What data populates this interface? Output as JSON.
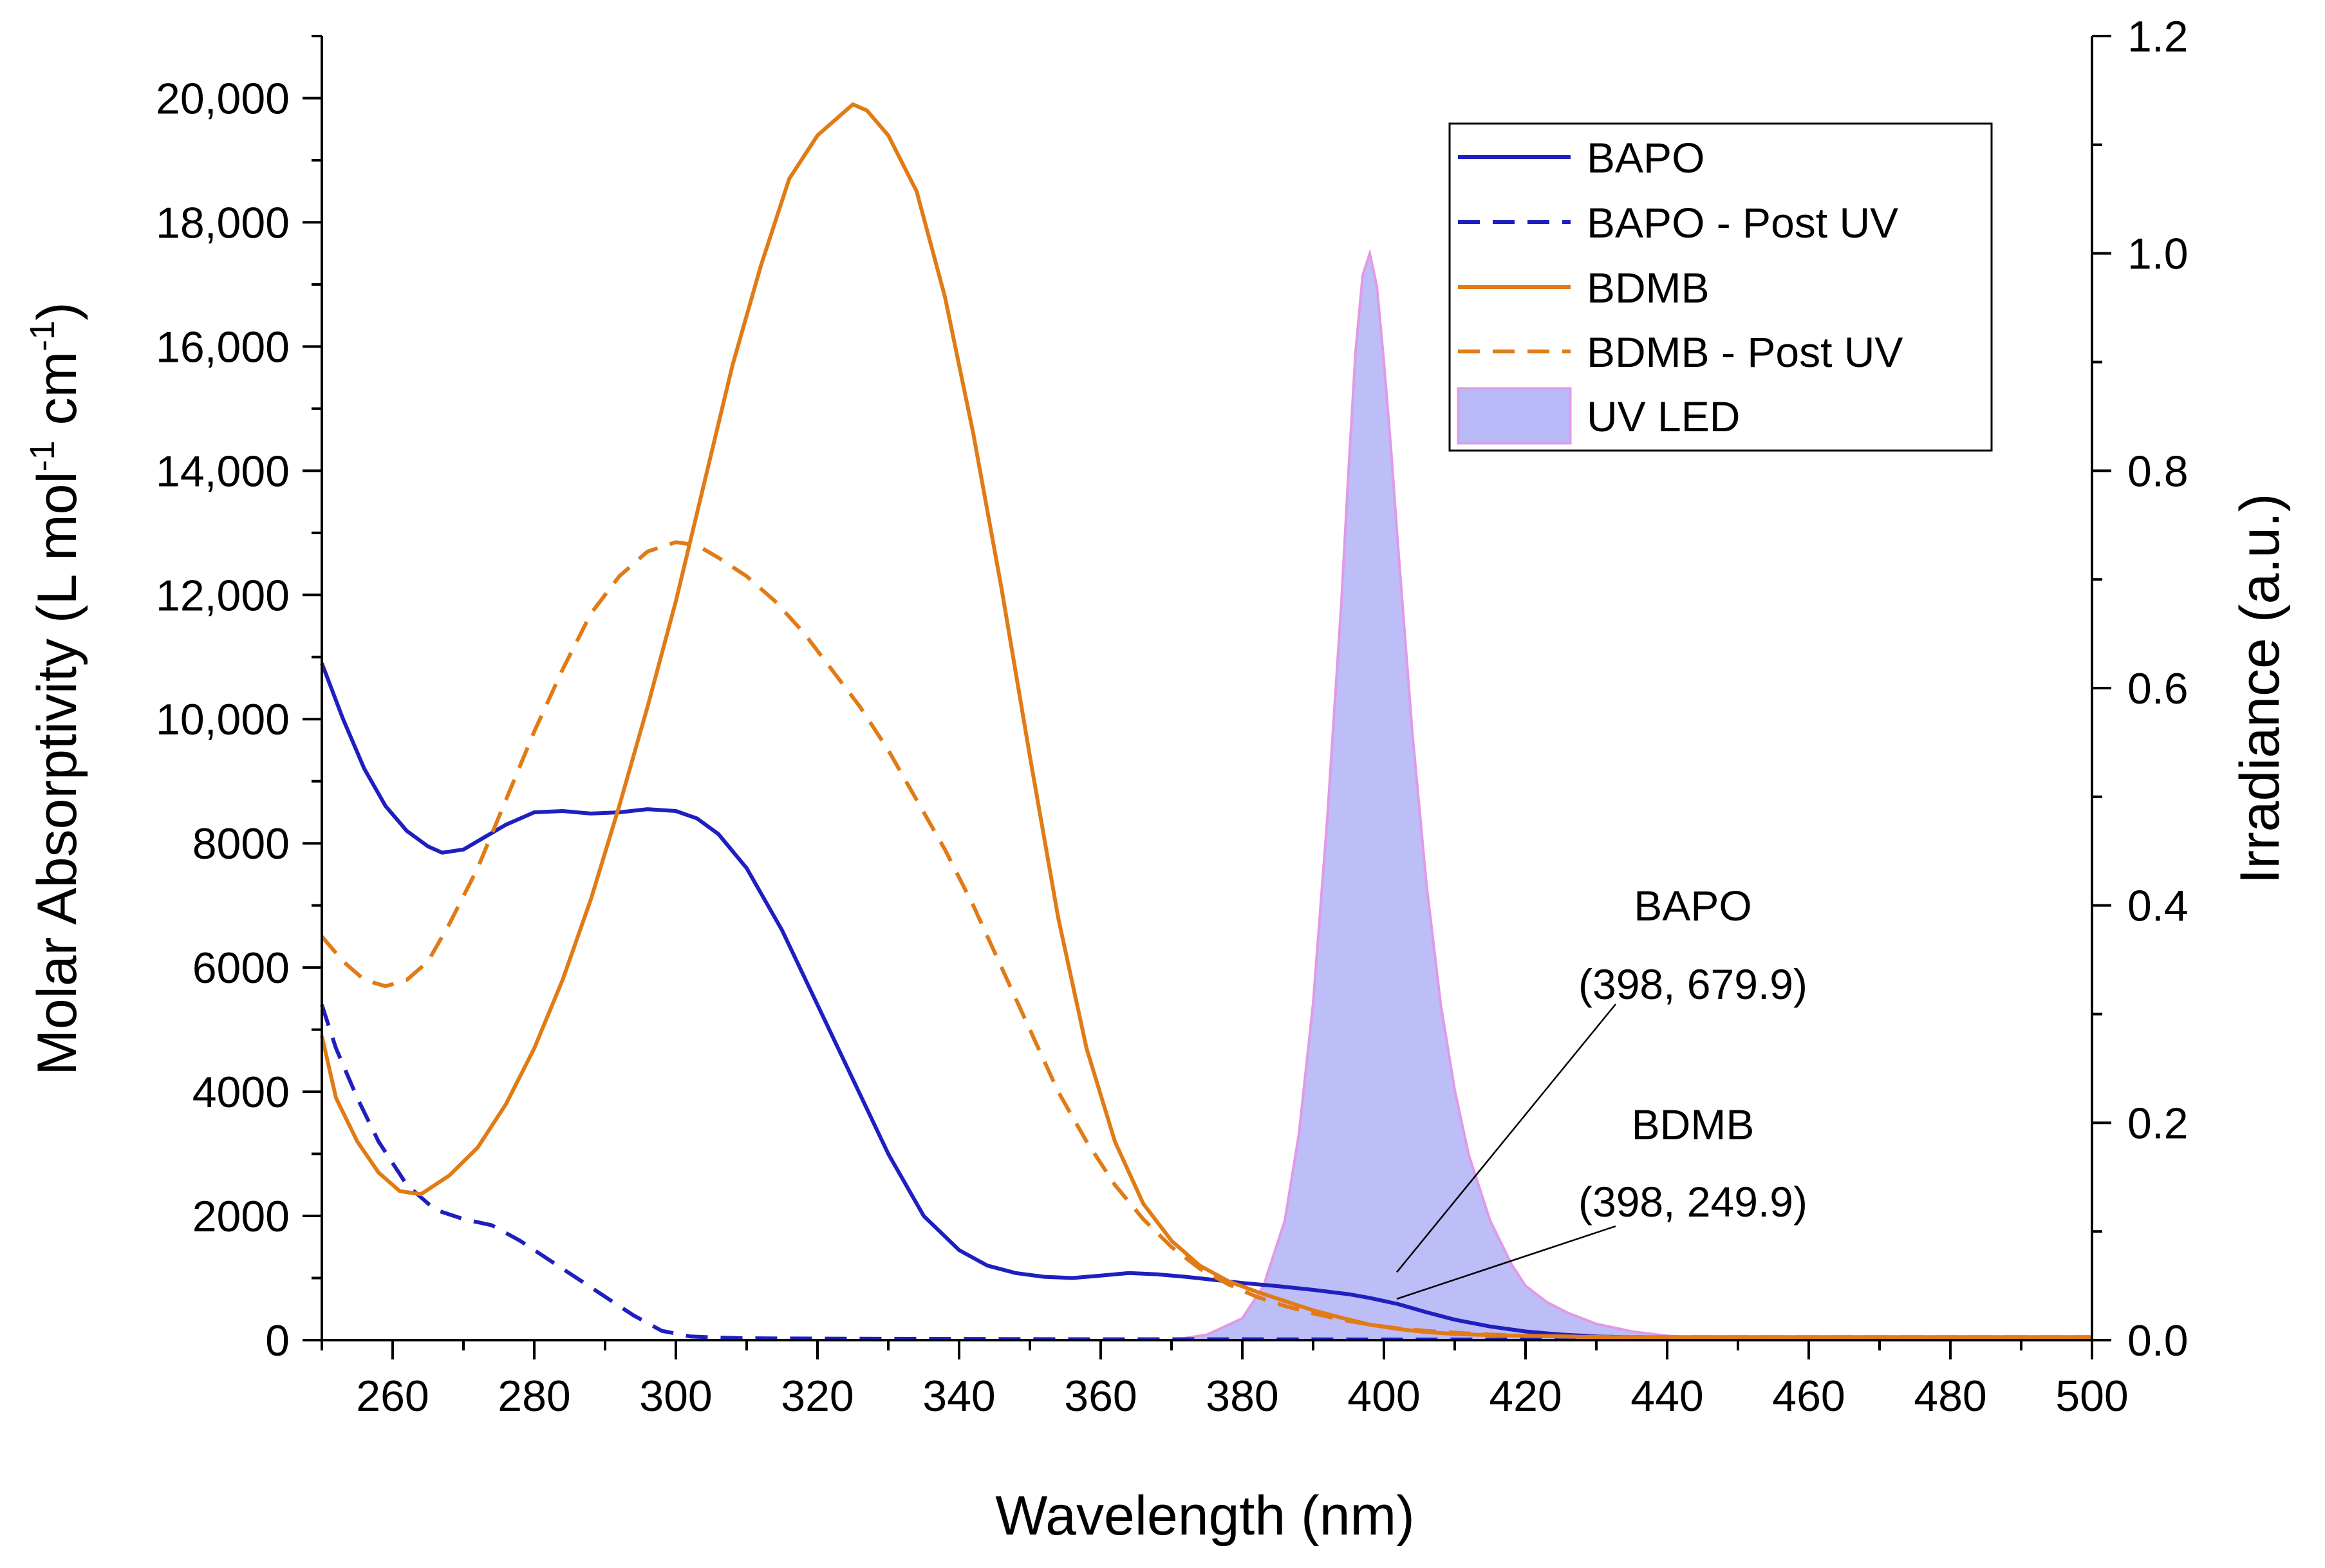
{
  "chart_data": {
    "type": "line",
    "title": "",
    "xlabel": "Wavelength (nm)",
    "ylabel_left": {
      "prefix": "Molar Absorptivity (L mol",
      "sup1": "-1",
      "mid": " cm",
      "sup2": "-1",
      "suffix": ")"
    },
    "ylabel_right": "Irradiance (a.u.)",
    "xlim": [
      250,
      500
    ],
    "ylim_left": [
      0,
      21000
    ],
    "ylim_right": [
      0,
      1.2
    ],
    "x_ticks": [
      260,
      280,
      300,
      320,
      340,
      360,
      380,
      400,
      420,
      440,
      460,
      480,
      500
    ],
    "x_tick_labels": [
      "260",
      "280",
      "300",
      "320",
      "340",
      "360",
      "380",
      "400",
      "420",
      "440",
      "460",
      "480",
      "500"
    ],
    "y_left_ticks": [
      0,
      2000,
      4000,
      6000,
      8000,
      10000,
      12000,
      14000,
      16000,
      18000,
      20000
    ],
    "y_left_tick_labels": [
      "0",
      "2000",
      "4000",
      "6000",
      "8000",
      "10,000",
      "12,000",
      "14,000",
      "16,000",
      "18,000",
      "20,000"
    ],
    "y_right_ticks": [
      0,
      0.2,
      0.4,
      0.6,
      0.8,
      1.0,
      1.2
    ],
    "y_right_tick_labels": [
      "0.0",
      "0.2",
      "0.4",
      "0.6",
      "0.8",
      "1.0",
      "1.2"
    ],
    "legend": {
      "placement": "top-right",
      "entries": [
        {
          "label": "BAPO",
          "series": "BAPO"
        },
        {
          "label": "BAPO - Post UV",
          "series": "BAPO - Post UV"
        },
        {
          "label": "BDMB",
          "series": "BDMB"
        },
        {
          "label": "BDMB - Post UV",
          "series": "BDMB - Post UV"
        },
        {
          "label": "UV LED",
          "series": "UV LED"
        }
      ]
    },
    "series": [
      {
        "name": "BAPO",
        "axis": "left",
        "color": "#1f1fc0",
        "style": "solid",
        "x": [
          250,
          253,
          256,
          259,
          262,
          265,
          267,
          270,
          273,
          276,
          280,
          284,
          288,
          292,
          296,
          300,
          303,
          306,
          310,
          315,
          320,
          325,
          330,
          335,
          340,
          344,
          348,
          352,
          356,
          360,
          364,
          368,
          372,
          376,
          380,
          385,
          390,
          395,
          398,
          402,
          406,
          410,
          415,
          420,
          425,
          430,
          440,
          450,
          460,
          470,
          480,
          490,
          500
        ],
        "values": [
          10900,
          10000,
          9200,
          8600,
          8200,
          7950,
          7850,
          7900,
          8100,
          8300,
          8500,
          8520,
          8480,
          8500,
          8550,
          8520,
          8400,
          8150,
          7600,
          6600,
          5400,
          4200,
          3000,
          2000,
          1450,
          1200,
          1080,
          1020,
          1000,
          1040,
          1080,
          1060,
          1020,
          970,
          920,
          870,
          810,
          740,
          680,
          580,
          450,
          330,
          220,
          140,
          90,
          60,
          30,
          20,
          15,
          12,
          10,
          10,
          10
        ]
      },
      {
        "name": "BAPO - Post UV",
        "axis": "left",
        "color": "#1f1fc0",
        "style": "dashed",
        "x": [
          250,
          252,
          255,
          258,
          262,
          266,
          270,
          274,
          278,
          282,
          286,
          290,
          294,
          298,
          302,
          306,
          310,
          320,
          340,
          360,
          380,
          400,
          420,
          440,
          460,
          480,
          500
        ],
        "values": [
          5400,
          4700,
          3900,
          3200,
          2500,
          2100,
          1950,
          1850,
          1600,
          1300,
          1000,
          700,
          400,
          150,
          60,
          40,
          30,
          25,
          20,
          15,
          15,
          10,
          10,
          10,
          10,
          10,
          10
        ]
      },
      {
        "name": "BDMB",
        "axis": "left",
        "color": "#e07b16",
        "style": "solid",
        "x": [
          250,
          252,
          255,
          258,
          261,
          264,
          268,
          272,
          276,
          280,
          284,
          288,
          292,
          296,
          300,
          304,
          308,
          312,
          316,
          320,
          323,
          325,
          327,
          330,
          334,
          338,
          342,
          346,
          350,
          354,
          358,
          362,
          366,
          370,
          374,
          378,
          382,
          386,
          390,
          394,
          398,
          402,
          406,
          410,
          415,
          420,
          425,
          430,
          440,
          450,
          460,
          470,
          480,
          490,
          500
        ],
        "values": [
          4900,
          3900,
          3200,
          2700,
          2400,
          2350,
          2650,
          3100,
          3800,
          4700,
          5800,
          7100,
          8600,
          10200,
          11900,
          13800,
          15700,
          17300,
          18700,
          19400,
          19700,
          19900,
          19800,
          19400,
          18500,
          16800,
          14600,
          12100,
          9400,
          6800,
          4700,
          3200,
          2200,
          1600,
          1200,
          950,
          780,
          630,
          480,
          360,
          250,
          180,
          130,
          100,
          80,
          70,
          60,
          50,
          50,
          50,
          50,
          50,
          50,
          50,
          50
        ]
      },
      {
        "name": "BDMB - Post UV",
        "axis": "left",
        "color": "#e07b16",
        "style": "dashed",
        "x": [
          250,
          253,
          256,
          259,
          262,
          265,
          268,
          272,
          276,
          280,
          284,
          288,
          292,
          296,
          300,
          303,
          306,
          310,
          314,
          318,
          322,
          326,
          330,
          334,
          338,
          342,
          346,
          350,
          354,
          358,
          362,
          366,
          370,
          374,
          378,
          382,
          386,
          390,
          394,
          398,
          402,
          406,
          410,
          415,
          420,
          425,
          430,
          440,
          450,
          460,
          470,
          480,
          490,
          500
        ],
        "values": [
          6500,
          6100,
          5800,
          5700,
          5800,
          6100,
          6700,
          7600,
          8700,
          9800,
          10800,
          11700,
          12300,
          12700,
          12850,
          12800,
          12600,
          12300,
          11900,
          11400,
          10800,
          10200,
          9500,
          8700,
          7900,
          7000,
          6000,
          5000,
          4000,
          3200,
          2500,
          1950,
          1500,
          1150,
          900,
          700,
          550,
          430,
          330,
          250,
          190,
          150,
          120,
          90,
          70,
          60,
          55,
          50,
          50,
          50,
          50,
          50,
          50,
          50
        ]
      },
      {
        "name": "UV LED",
        "axis": "right",
        "color": "#b9b9f8",
        "edge_color": "#e09ae6",
        "style": "filled-area",
        "x": [
          370,
          375,
          380,
          383,
          386,
          388,
          390,
          392,
          394,
          395,
          396,
          397,
          398,
          399,
          400,
          401,
          402,
          404,
          406,
          408,
          410,
          412,
          415,
          418,
          420,
          423,
          426,
          430,
          435,
          440,
          445,
          450,
          460,
          470,
          480,
          500
        ],
        "values": [
          0.0,
          0.005,
          0.02,
          0.05,
          0.11,
          0.19,
          0.31,
          0.48,
          0.68,
          0.8,
          0.91,
          0.98,
          1.0,
          0.97,
          0.9,
          0.82,
          0.73,
          0.56,
          0.42,
          0.31,
          0.23,
          0.17,
          0.11,
          0.07,
          0.05,
          0.035,
          0.025,
          0.015,
          0.008,
          0.004,
          0.002,
          0.001,
          0.0,
          0.0,
          0.0,
          0.0
        ]
      }
    ],
    "annotations": [
      {
        "line1": "BAPO",
        "line2": "(398, 679.9)",
        "x": 398,
        "y": 679.9,
        "series": "BAPO"
      },
      {
        "line1": "BDMB",
        "line2": "(398, 249.9)",
        "x": 398,
        "y": 249.9,
        "series": "BDMB"
      }
    ]
  }
}
